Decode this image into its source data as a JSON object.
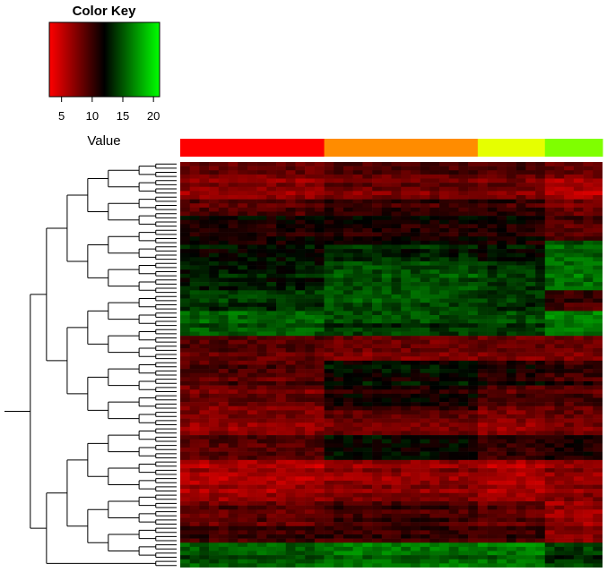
{
  "chart_data": {
    "type": "heatmap",
    "title": "",
    "color_key": {
      "title": "Color Key",
      "xlabel": "Value",
      "ticks": [
        5,
        10,
        15,
        20
      ],
      "range": [
        3,
        21
      ],
      "colors": [
        "#ff0000",
        "#000000",
        "#00ff00"
      ]
    },
    "column_groups": [
      {
        "color": "#ff0000",
        "count": 15
      },
      {
        "color": "#ff8c00",
        "count": 16
      },
      {
        "color": "#e6ff00",
        "count": 7
      },
      {
        "color": "#7fff00",
        "count": 6
      }
    ],
    "row_bands": [
      {
        "rows": 4,
        "group_means": [
          8,
          9,
          9,
          8
        ]
      },
      {
        "rows": 5,
        "group_means": [
          7,
          8,
          8,
          6
        ]
      },
      {
        "rows": 4,
        "group_means": [
          9,
          10,
          10,
          8
        ]
      },
      {
        "rows": 6,
        "group_means": [
          11,
          11,
          11,
          9
        ]
      },
      {
        "rows": 5,
        "group_means": [
          12,
          13,
          12,
          15
        ]
      },
      {
        "rows": 7,
        "group_means": [
          13,
          15,
          14,
          16
        ]
      },
      {
        "rows": 5,
        "group_means": [
          14,
          15,
          14,
          10
        ]
      },
      {
        "rows": 6,
        "group_means": [
          15,
          14,
          14,
          16
        ]
      },
      {
        "rows": 6,
        "group_means": [
          9,
          8,
          8,
          8
        ]
      },
      {
        "rows": 6,
        "group_means": [
          9,
          12,
          11,
          10
        ]
      },
      {
        "rows": 6,
        "group_means": [
          8,
          11,
          9,
          9
        ]
      },
      {
        "rows": 6,
        "group_means": [
          7,
          8,
          7,
          8
        ]
      },
      {
        "rows": 6,
        "group_means": [
          9,
          12,
          10,
          11
        ]
      },
      {
        "rows": 10,
        "group_means": [
          6,
          7,
          6,
          7
        ]
      },
      {
        "rows": 6,
        "group_means": [
          9,
          10,
          9,
          7
        ]
      },
      {
        "rows": 4,
        "group_means": [
          10,
          10,
          10,
          7
        ]
      },
      {
        "rows": 6,
        "group_means": [
          15,
          16,
          16,
          14
        ]
      }
    ],
    "row_dendrogram": true,
    "grid": false,
    "legend_position": "top-left"
  }
}
